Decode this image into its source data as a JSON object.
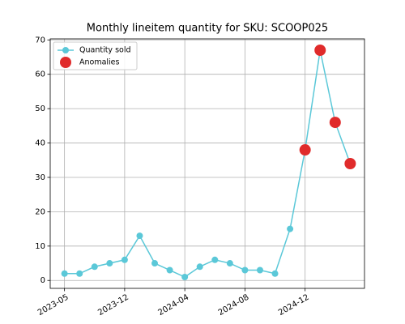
{
  "chart_data": {
    "type": "line",
    "title": "Monthly lineitem quantity for SKU: SCOOP025",
    "categories": [
      "2023-05",
      null,
      null,
      null,
      "2023-12",
      null,
      null,
      null,
      "2024-04",
      null,
      null,
      null,
      "2024-08",
      null,
      null,
      null,
      "2024-12",
      null,
      null,
      null
    ],
    "series": [
      {
        "name": "Quantity sold",
        "color": "#5bc8d8",
        "values": [
          2,
          2,
          4,
          5,
          6,
          13,
          5,
          3,
          1,
          4,
          6,
          5,
          3,
          3,
          2,
          15,
          38,
          67,
          46,
          34
        ]
      },
      {
        "name": "Anomalies",
        "color": "#e02b2b",
        "type": "scatter",
        "values": [
          null,
          null,
          null,
          null,
          null,
          null,
          null,
          null,
          null,
          null,
          null,
          null,
          null,
          null,
          null,
          null,
          38,
          67,
          46,
          34
        ]
      }
    ],
    "ylim": [
      -2.3,
      70.3
    ],
    "yticks": [
      0,
      10,
      20,
      30,
      40,
      50,
      60,
      70
    ],
    "grid": true,
    "legend": "upper left"
  }
}
